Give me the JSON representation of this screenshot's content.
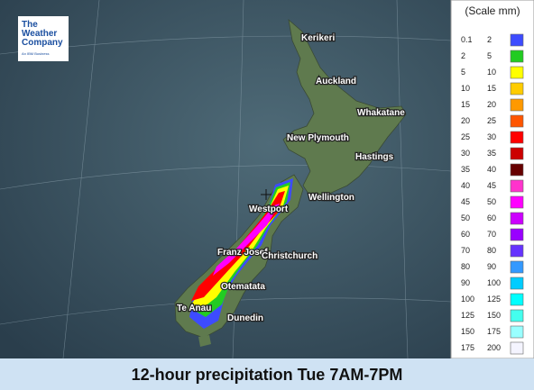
{
  "logo": {
    "lines": [
      "The",
      "Weather",
      "Company"
    ],
    "tagline": "An IBM Business"
  },
  "cities": [
    "Kerikeri",
    "Auckland",
    "Whakatane",
    "New Plymouth",
    "Hastings",
    "Wellington",
    "Westport",
    "Franz Josef",
    "Christchurch",
    "Otematata",
    "Te Anau",
    "Dunedin"
  ],
  "legend": {
    "title": "(Scale mm)",
    "rows": [
      {
        "from": 0.1,
        "to": 2,
        "color": "#3d4bff"
      },
      {
        "from": 2,
        "to": 5,
        "color": "#22cc22"
      },
      {
        "from": 5,
        "to": 10,
        "color": "#ffff00"
      },
      {
        "from": 10,
        "to": 15,
        "color": "#ffcc00"
      },
      {
        "from": 15,
        "to": 20,
        "color": "#ff9900"
      },
      {
        "from": 20,
        "to": 25,
        "color": "#ff5500"
      },
      {
        "from": 25,
        "to": 30,
        "color": "#ff0000"
      },
      {
        "from": 30,
        "to": 35,
        "color": "#cc0000"
      },
      {
        "from": 35,
        "to": 40,
        "color": "#660000"
      },
      {
        "from": 40,
        "to": 45,
        "color": "#ff33cc"
      },
      {
        "from": 45,
        "to": 50,
        "color": "#ff00ff"
      },
      {
        "from": 50,
        "to": 60,
        "color": "#cc00ff"
      },
      {
        "from": 60,
        "to": 70,
        "color": "#9900ff"
      },
      {
        "from": 70,
        "to": 80,
        "color": "#6633ff"
      },
      {
        "from": 80,
        "to": 90,
        "color": "#3399ff"
      },
      {
        "from": 90,
        "to": 100,
        "color": "#00ccff"
      },
      {
        "from": 100,
        "to": 125,
        "color": "#00ffff"
      },
      {
        "from": 125,
        "to": 150,
        "color": "#44ffee"
      },
      {
        "from": 150,
        "to": 175,
        "color": "#99ffff"
      },
      {
        "from": 175,
        "to": 200,
        "color": "#f4f4ff"
      }
    ]
  },
  "caption": "12-hour precipitation Tue 7AM-7PM"
}
